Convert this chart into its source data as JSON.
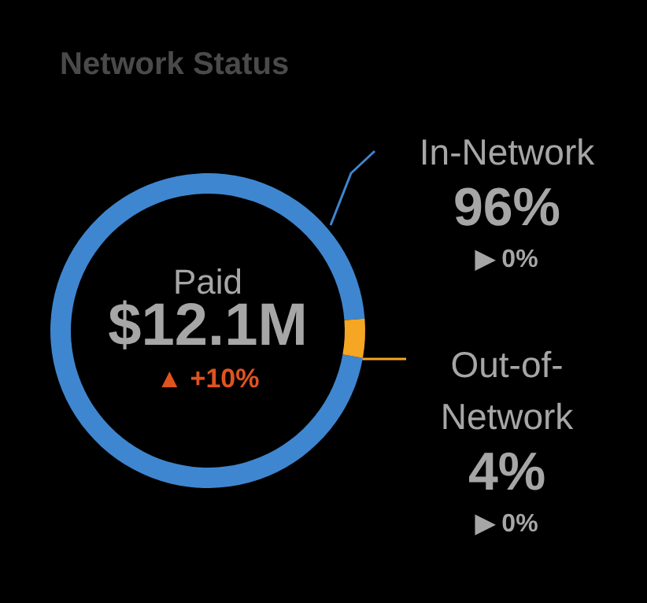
{
  "chart_data": {
    "type": "donut",
    "title": "Network Status",
    "categories": [
      "In-Network",
      "Out-of-Network"
    ],
    "values": [
      96,
      4
    ],
    "colors": [
      "#3f86d0",
      "#f5a623"
    ],
    "value_labels": [
      "96%",
      "4%"
    ],
    "annotations": [
      "Paid",
      "$12.1M",
      "▲ +10%",
      "▶ 0%",
      "▶ 0%"
    ],
    "legend": false
  }
}
